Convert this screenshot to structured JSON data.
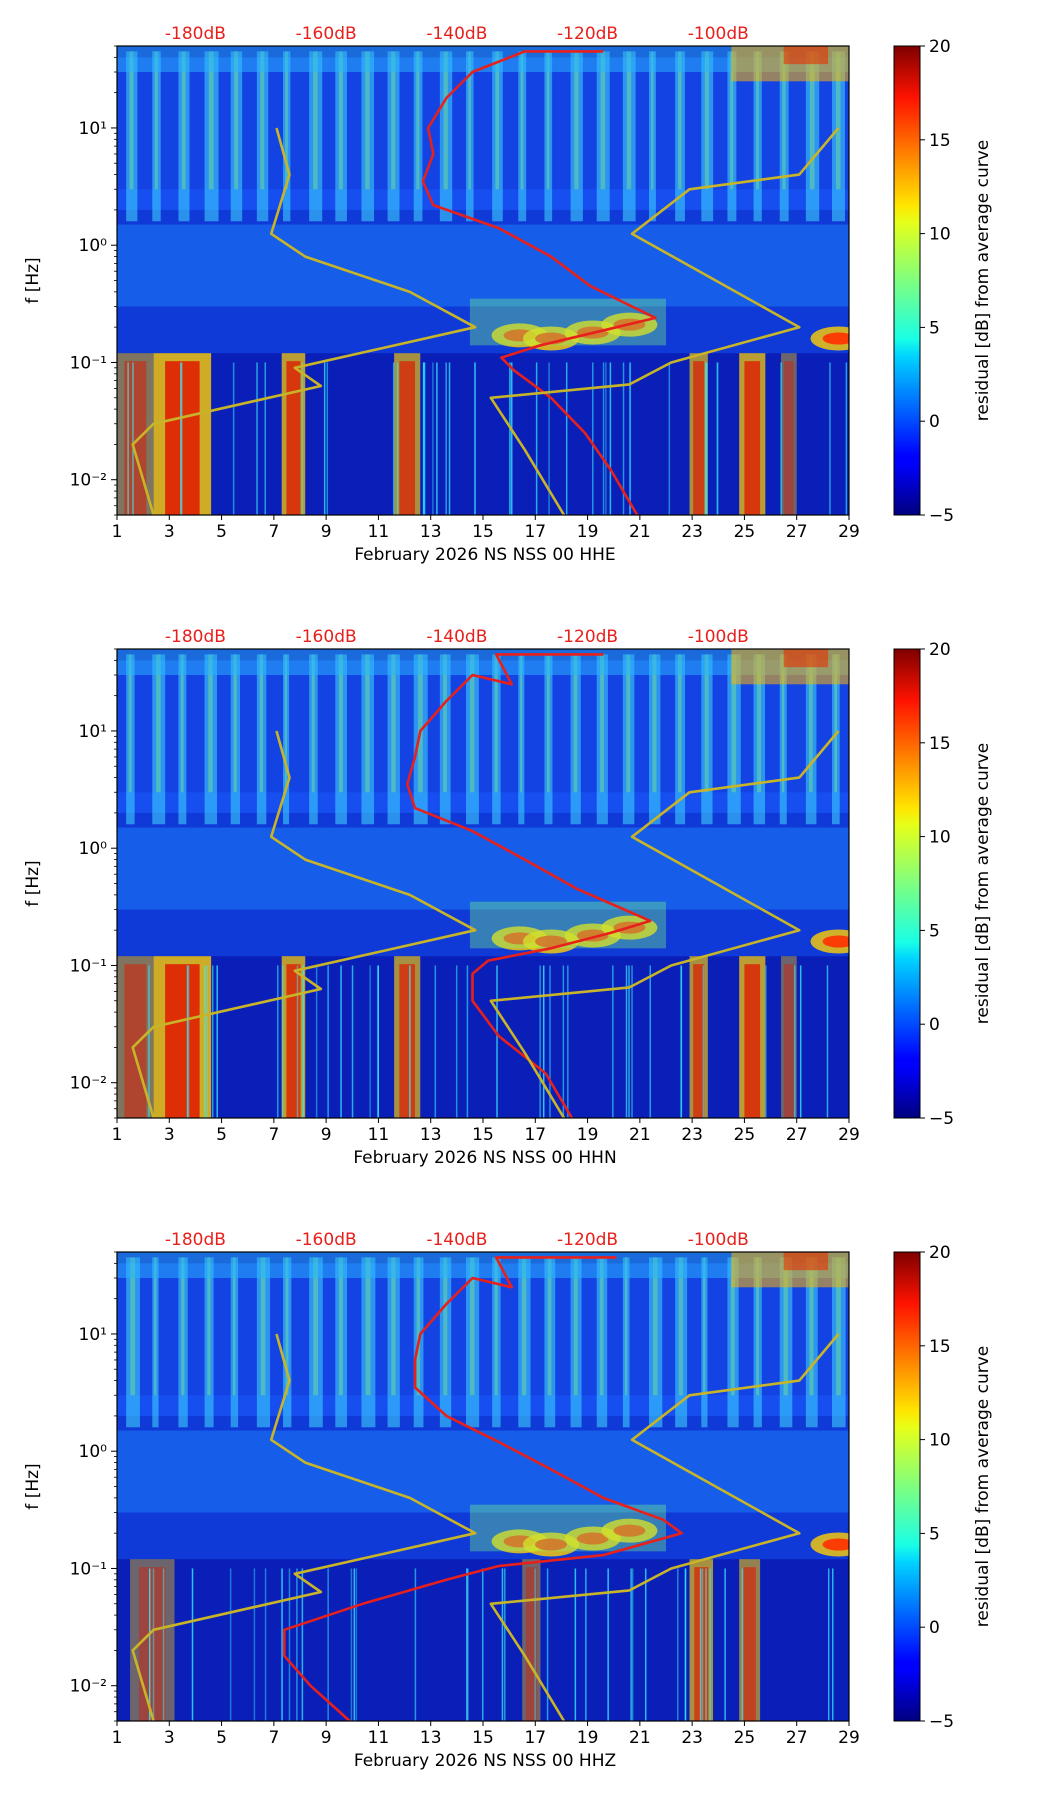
{
  "chart_data": [
    {
      "type": "heatmap",
      "component": "HHE",
      "xlabel": "February 2026 NS NSS 00 HHE",
      "ylabel": "f [Hz]",
      "xlim": [
        1,
        29
      ],
      "ylim": [
        0.005,
        50
      ],
      "yscale": "log",
      "xticks": [
        "1",
        "3",
        "5",
        "7",
        "9",
        "11",
        "13",
        "15",
        "17",
        "19",
        "21",
        "23",
        "25",
        "27",
        "29"
      ],
      "yticks": [
        "10⁻²",
        "10⁻¹",
        "10⁰",
        "10¹"
      ],
      "top_axis_labels": [
        "-180dB",
        "-160dB",
        "-140dB",
        "-120dB",
        "-100dB"
      ],
      "colorbar": {
        "label": "residual [dB] from average curve",
        "ticks": [
          "−5",
          "0",
          "5",
          "10",
          "15",
          "20"
        ],
        "range": [
          -5,
          20
        ]
      },
      "series": [
        {
          "name": "average PSD curve",
          "color": "#e8201c",
          "points": [
            [
              20.9,
              0.005
            ],
            [
              19.9,
              0.012
            ],
            [
              18.9,
              0.025
            ],
            [
              17.6,
              0.05
            ],
            [
              16.2,
              0.085
            ],
            [
              15.7,
              0.11
            ],
            [
              17.2,
              0.14
            ],
            [
              19.7,
              0.19
            ],
            [
              21.6,
              0.24
            ],
            [
              20.7,
              0.3
            ],
            [
              19.1,
              0.45
            ],
            [
              17.6,
              0.8
            ],
            [
              15.6,
              1.4
            ],
            [
              13.1,
              2.2
            ],
            [
              12.7,
              3.5
            ],
            [
              13.1,
              6
            ],
            [
              12.9,
              10
            ],
            [
              13.6,
              18
            ],
            [
              14.6,
              30
            ],
            [
              16.6,
              45
            ],
            [
              19.6,
              45
            ]
          ]
        },
        {
          "name": "low noise model",
          "color": "#c8b428",
          "points": [
            [
              18.1,
              0.005
            ],
            [
              16.6,
              0.018
            ],
            [
              15.3,
              0.05
            ],
            [
              20.6,
              0.065
            ],
            [
              22.2,
              0.1
            ],
            [
              27.1,
              0.2
            ],
            [
              20.7,
              1.25
            ],
            [
              22.9,
              3
            ],
            [
              27.1,
              4
            ],
            [
              28.6,
              10
            ]
          ]
        },
        {
          "name": "high noise model",
          "color": "#c8b428",
          "points": [
            [
              2.4,
              0.005
            ],
            [
              1.6,
              0.02
            ],
            [
              2.4,
              0.03
            ],
            [
              8.8,
              0.063
            ],
            [
              7.8,
              0.09
            ],
            [
              14.7,
              0.2
            ],
            [
              12.2,
              0.4
            ],
            [
              8.2,
              0.8
            ],
            [
              6.9,
              1.25
            ],
            [
              7.6,
              4
            ],
            [
              7.1,
              10
            ]
          ]
        }
      ]
    },
    {
      "type": "heatmap",
      "component": "HHN",
      "xlabel": "February 2026 NS NSS 00 HHN",
      "ylabel": "f [Hz]",
      "xlim": [
        1,
        29
      ],
      "ylim": [
        0.005,
        50
      ],
      "yscale": "log",
      "xticks": [
        "1",
        "3",
        "5",
        "7",
        "9",
        "11",
        "13",
        "15",
        "17",
        "19",
        "21",
        "23",
        "25",
        "27",
        "29"
      ],
      "yticks": [
        "10⁻²",
        "10⁻¹",
        "10⁰",
        "10¹"
      ],
      "top_axis_labels": [
        "-180dB",
        "-160dB",
        "-140dB",
        "-120dB",
        "-100dB"
      ],
      "colorbar": {
        "label": "residual [dB] from average curve",
        "ticks": [
          "−5",
          "0",
          "5",
          "10",
          "15",
          "20"
        ],
        "range": [
          -5,
          20
        ]
      },
      "series": [
        {
          "name": "average PSD curve",
          "color": "#e8201c",
          "points": [
            [
              18.4,
              0.005
            ],
            [
              17.4,
              0.012
            ],
            [
              15.6,
              0.025
            ],
            [
              14.6,
              0.05
            ],
            [
              14.6,
              0.085
            ],
            [
              15.2,
              0.11
            ],
            [
              17.6,
              0.14
            ],
            [
              19.9,
              0.19
            ],
            [
              21.4,
              0.24
            ],
            [
              20.4,
              0.3
            ],
            [
              18.6,
              0.45
            ],
            [
              16.6,
              0.8
            ],
            [
              14.6,
              1.4
            ],
            [
              12.4,
              2.2
            ],
            [
              12.1,
              3.5
            ],
            [
              12.4,
              6
            ],
            [
              12.6,
              10
            ],
            [
              13.6,
              18
            ],
            [
              14.6,
              30
            ],
            [
              16.1,
              25
            ],
            [
              15.5,
              45
            ],
            [
              19.6,
              45
            ]
          ]
        },
        {
          "name": "low noise model",
          "color": "#c8b428",
          "points": [
            [
              18.1,
              0.005
            ],
            [
              16.6,
              0.018
            ],
            [
              15.3,
              0.05
            ],
            [
              20.6,
              0.065
            ],
            [
              22.2,
              0.1
            ],
            [
              27.1,
              0.2
            ],
            [
              20.7,
              1.25
            ],
            [
              22.9,
              3
            ],
            [
              27.1,
              4
            ],
            [
              28.6,
              10
            ]
          ]
        },
        {
          "name": "high noise model",
          "color": "#c8b428",
          "points": [
            [
              2.4,
              0.005
            ],
            [
              1.6,
              0.02
            ],
            [
              2.4,
              0.03
            ],
            [
              8.8,
              0.063
            ],
            [
              7.8,
              0.09
            ],
            [
              14.7,
              0.2
            ],
            [
              12.2,
              0.4
            ],
            [
              8.2,
              0.8
            ],
            [
              6.9,
              1.25
            ],
            [
              7.6,
              4
            ],
            [
              7.1,
              10
            ]
          ]
        }
      ]
    },
    {
      "type": "heatmap",
      "component": "HHZ",
      "xlabel": "February 2026 NS NSS 00 HHZ",
      "ylabel": "f [Hz]",
      "xlim": [
        1,
        29
      ],
      "ylim": [
        0.005,
        50
      ],
      "yscale": "log",
      "xticks": [
        "1",
        "3",
        "5",
        "7",
        "9",
        "11",
        "13",
        "15",
        "17",
        "19",
        "21",
        "23",
        "25",
        "27",
        "29"
      ],
      "yticks": [
        "10⁻²",
        "10⁻¹",
        "10⁰",
        "10¹"
      ],
      "top_axis_labels": [
        "-180dB",
        "-160dB",
        "-140dB",
        "-120dB",
        "-100dB"
      ],
      "colorbar": {
        "label": "residual [dB] from average curve",
        "ticks": [
          "−5",
          "0",
          "5",
          "10",
          "15",
          "20"
        ],
        "range": [
          -5,
          20
        ]
      },
      "series": [
        {
          "name": "average PSD curve",
          "color": "#e8201c",
          "points": [
            [
              9.9,
              0.005
            ],
            [
              8.4,
              0.01
            ],
            [
              7.4,
              0.018
            ],
            [
              7.4,
              0.03
            ],
            [
              10.4,
              0.05
            ],
            [
              13.6,
              0.08
            ],
            [
              15.6,
              0.105
            ],
            [
              19.6,
              0.13
            ],
            [
              22.6,
              0.2
            ],
            [
              21.9,
              0.26
            ],
            [
              19.6,
              0.4
            ],
            [
              17.6,
              0.7
            ],
            [
              15.6,
              1.2
            ],
            [
              13.6,
              2
            ],
            [
              12.4,
              3.5
            ],
            [
              12.4,
              6
            ],
            [
              12.6,
              10
            ],
            [
              13.6,
              18
            ],
            [
              14.6,
              30
            ],
            [
              16.1,
              25
            ],
            [
              15.5,
              45
            ],
            [
              20.1,
              45
            ]
          ]
        },
        {
          "name": "low noise model",
          "color": "#c8b428",
          "points": [
            [
              18.1,
              0.005
            ],
            [
              16.6,
              0.018
            ],
            [
              15.3,
              0.05
            ],
            [
              20.6,
              0.065
            ],
            [
              22.2,
              0.1
            ],
            [
              27.1,
              0.2
            ],
            [
              20.7,
              1.25
            ],
            [
              22.9,
              3
            ],
            [
              27.1,
              4
            ],
            [
              28.6,
              10
            ]
          ]
        },
        {
          "name": "high noise model",
          "color": "#c8b428",
          "points": [
            [
              2.4,
              0.005
            ],
            [
              1.6,
              0.02
            ],
            [
              2.4,
              0.03
            ],
            [
              8.8,
              0.063
            ],
            [
              7.8,
              0.09
            ],
            [
              14.7,
              0.2
            ],
            [
              12.2,
              0.4
            ],
            [
              8.2,
              0.8
            ],
            [
              6.9,
              1.25
            ],
            [
              7.6,
              4
            ],
            [
              7.1,
              10
            ]
          ]
        }
      ]
    }
  ]
}
